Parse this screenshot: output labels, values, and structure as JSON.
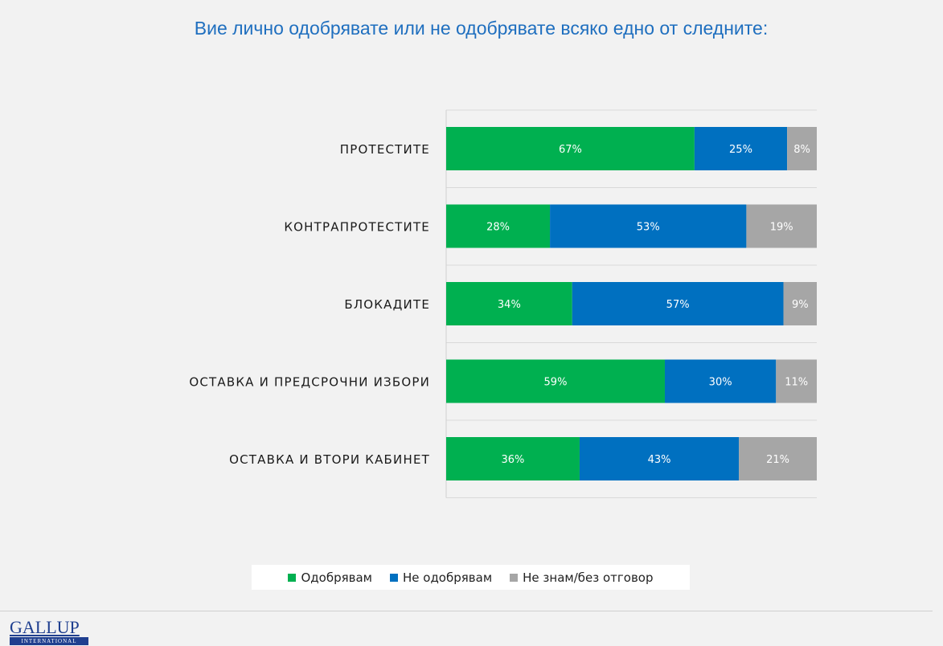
{
  "title": "Вие лично одобрявате или не одобрявате всяко едно от следните:",
  "chart_data": {
    "type": "bar",
    "orientation": "horizontal",
    "stacked": true,
    "categories": [
      "ПРОТЕСТИТЕ",
      "КОНТРАПРОТЕСТИТЕ",
      "БЛОКАДИТЕ",
      "ОСТАВКА И ПРЕДСРОЧНИ ИЗБОРИ",
      "ОСТАВКА И ВТОРИ КАБИНЕТ"
    ],
    "series": [
      {
        "name": "Одобрявам",
        "color": "#00b050",
        "values": [
          67,
          28,
          34,
          59,
          36
        ]
      },
      {
        "name": "Не одобрявам",
        "color": "#0070c0",
        "values": [
          25,
          53,
          57,
          30,
          43
        ]
      },
      {
        "name": "Не знам/без отговор",
        "color": "#a6a6a6",
        "values": [
          8,
          19,
          9,
          11,
          21
        ]
      }
    ],
    "value_suffix": "%",
    "xlim": [
      0,
      100
    ],
    "legend": "bottom",
    "grid": true
  },
  "logo": {
    "main": "GALLUP",
    "sub": "INTERNATIONAL"
  }
}
